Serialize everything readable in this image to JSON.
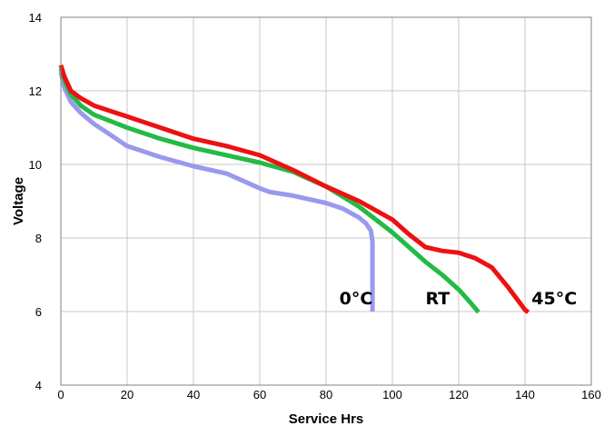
{
  "chart_data": {
    "type": "line",
    "title": "",
    "xlabel": "Service Hrs",
    "ylabel": "Voltage",
    "xlim": [
      0,
      160
    ],
    "ylim": [
      4,
      14
    ],
    "xticks": [
      0,
      20,
      40,
      60,
      80,
      100,
      120,
      140,
      160
    ],
    "yticks": [
      4,
      6,
      8,
      10,
      12,
      14
    ],
    "grid": true,
    "legend": "none",
    "series": [
      {
        "name": "0°C",
        "color": "#9999ee",
        "points": [
          [
            0,
            12.5
          ],
          [
            1,
            12.1
          ],
          [
            3,
            11.7
          ],
          [
            6,
            11.4
          ],
          [
            10,
            11.1
          ],
          [
            15,
            10.8
          ],
          [
            20,
            10.5
          ],
          [
            30,
            10.2
          ],
          [
            40,
            9.95
          ],
          [
            50,
            9.75
          ],
          [
            55,
            9.55
          ],
          [
            60,
            9.35
          ],
          [
            63,
            9.25
          ],
          [
            70,
            9.15
          ],
          [
            80,
            8.95
          ],
          [
            85,
            8.8
          ],
          [
            90,
            8.55
          ],
          [
            92,
            8.4
          ],
          [
            93.5,
            8.2
          ],
          [
            94,
            7.9
          ],
          [
            94,
            6.0
          ]
        ]
      },
      {
        "name": "RT",
        "color": "#22bb44",
        "points": [
          [
            0,
            12.6
          ],
          [
            1,
            12.3
          ],
          [
            3,
            11.9
          ],
          [
            6,
            11.6
          ],
          [
            10,
            11.35
          ],
          [
            20,
            11.0
          ],
          [
            30,
            10.7
          ],
          [
            40,
            10.45
          ],
          [
            50,
            10.25
          ],
          [
            60,
            10.05
          ],
          [
            70,
            9.8
          ],
          [
            80,
            9.4
          ],
          [
            90,
            8.85
          ],
          [
            100,
            8.15
          ],
          [
            110,
            7.35
          ],
          [
            115,
            7.0
          ],
          [
            120,
            6.6
          ],
          [
            123,
            6.3
          ],
          [
            126,
            5.98
          ]
        ]
      },
      {
        "name": "45°C",
        "color": "#ee1111",
        "points": [
          [
            0,
            12.7
          ],
          [
            1,
            12.4
          ],
          [
            3,
            12.0
          ],
          [
            6,
            11.8
          ],
          [
            10,
            11.6
          ],
          [
            20,
            11.3
          ],
          [
            30,
            11.0
          ],
          [
            40,
            10.7
          ],
          [
            50,
            10.5
          ],
          [
            60,
            10.25
          ],
          [
            70,
            9.85
          ],
          [
            80,
            9.4
          ],
          [
            90,
            9.0
          ],
          [
            100,
            8.5
          ],
          [
            105,
            8.1
          ],
          [
            110,
            7.75
          ],
          [
            115,
            7.65
          ],
          [
            120,
            7.6
          ],
          [
            125,
            7.45
          ],
          [
            130,
            7.2
          ],
          [
            135,
            6.65
          ],
          [
            140,
            6.05
          ],
          [
            141,
            5.98
          ]
        ]
      }
    ],
    "annotations": [
      {
        "text": "0°C",
        "x": 84,
        "y": 6.2
      },
      {
        "text": "RT",
        "x": 110,
        "y": 6.2
      },
      {
        "text": "45°C",
        "x": 142,
        "y": 6.2
      }
    ]
  }
}
